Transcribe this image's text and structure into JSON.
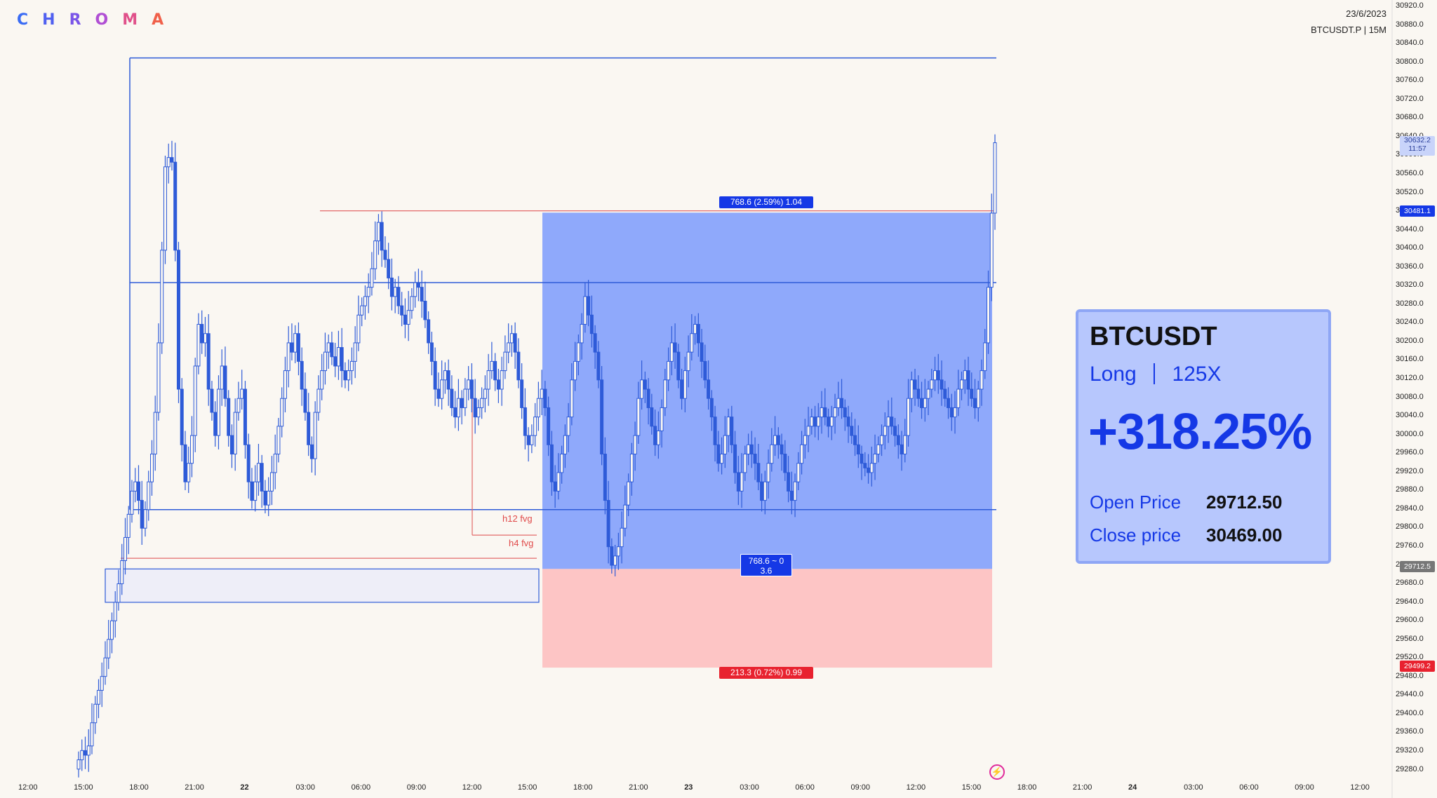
{
  "brand": {
    "letters": [
      "C",
      "H",
      "R",
      "O",
      "M",
      "A"
    ],
    "colors": [
      "#3a6cf4",
      "#5060f0",
      "#7a55e8",
      "#b04fd4",
      "#e0508a",
      "#f0604a"
    ]
  },
  "header": {
    "date": "23/6/2023",
    "symbol_line": "BTCUSDT.P | 15M"
  },
  "price_axis": {
    "ticks": [
      "30920.0",
      "30880.0",
      "30840.0",
      "30800.0",
      "30760.0",
      "30720.0",
      "30680.0",
      "30640.0",
      "30600.0",
      "30560.0",
      "30520.0",
      "30480.0",
      "30440.0",
      "30400.0",
      "30360.0",
      "30320.0",
      "30280.0",
      "30240.0",
      "30200.0",
      "30160.0",
      "30120.0",
      "30080.0",
      "30040.0",
      "30000.0",
      "29960.0",
      "29920.0",
      "29880.0",
      "29840.0",
      "29800.0",
      "29760.0",
      "29720.0",
      "29680.0",
      "29640.0",
      "29600.0",
      "29560.0",
      "29520.0",
      "29480.0",
      "29440.0",
      "29400.0",
      "29360.0",
      "29320.0",
      "29280.0"
    ],
    "current_price": "30632.2",
    "countdown": "11:57",
    "tp_price": "30481.1",
    "entry_price": "29712.5",
    "sl_price": "29499.2"
  },
  "time_axis": {
    "ticks": [
      "12:00",
      "15:00",
      "18:00",
      "21:00",
      "22",
      "03:00",
      "06:00",
      "09:00",
      "12:00",
      "15:00",
      "18:00",
      "21:00",
      "23",
      "03:00",
      "06:00",
      "09:00",
      "12:00",
      "15:00",
      "18:00",
      "21:00",
      "24",
      "03:00",
      "06:00",
      "09:00",
      "12:00"
    ],
    "bold": [
      "22",
      "23",
      "24"
    ]
  },
  "position_tool": {
    "target_label": "768.6 (2.59%) 1.04",
    "center_label_line1": "768.6 ~ 0",
    "center_label_line2": "3.6",
    "stop_label": "213.3 (0.72%) 0.99",
    "fvg_labels": [
      "h12 fvg",
      "h4 fvg"
    ]
  },
  "card": {
    "symbol": "BTCUSDT",
    "side": "Long",
    "leverage": "125X",
    "pnl": "+318.25%",
    "open_label": "Open Price",
    "open_value": "29712.50",
    "close_label": "Close price",
    "close_value": "30469.00"
  },
  "colors": {
    "candle": "#2e5bd8",
    "profit_zone": "#8fa9fb",
    "loss_zone": "#fdc5c5",
    "accent_blue": "#1538e6",
    "accent_red": "#e8222f"
  },
  "chart_data": {
    "type": "candlestick",
    "ylim": [
      29260,
      30940
    ],
    "candles_close": [
      29300,
      29320,
      29310,
      29330,
      29380,
      29420,
      29450,
      29480,
      29520,
      29560,
      29600,
      29640,
      29680,
      29730,
      29780,
      29830,
      29880,
      29900,
      29860,
      29800,
      29840,
      29900,
      29960,
      30050,
      30200,
      30400,
      30580,
      30600,
      30590,
      30400,
      30100,
      29980,
      29900,
      29940,
      30000,
      30150,
      30240,
      30200,
      30220,
      30100,
      30050,
      30000,
      30100,
      30150,
      30080,
      30000,
      29960,
      30050,
      30080,
      30100,
      29980,
      29900,
      29860,
      29900,
      29940,
      29880,
      29850,
      29880,
      29920,
      29960,
      30020,
      30080,
      30140,
      30200,
      30180,
      30220,
      30160,
      30100,
      30050,
      29980,
      29950,
      30050,
      30100,
      30140,
      30180,
      30200,
      30170,
      30150,
      30190,
      30140,
      30120,
      30140,
      30160,
      30200,
      30260,
      30280,
      30300,
      30320,
      30360,
      30420,
      30460,
      30400,
      30380,
      30340,
      30300,
      30320,
      30280,
      30260,
      30240,
      30270,
      30300,
      30330,
      30320,
      30290,
      30250,
      30200,
      30160,
      30100,
      30080,
      30120,
      30140,
      30100,
      30060,
      30040,
      30080,
      30060,
      30100,
      30120,
      30080,
      30040,
      30060,
      30080,
      30100,
      30140,
      30160,
      30120,
      30100,
      30140,
      30180,
      30200,
      30220,
      30180,
      30120,
      30060,
      30000,
      29980,
      30000,
      30040,
      30080,
      30100,
      30060,
      29980,
      29900,
      29880,
      29920,
      29960,
      30000,
      30040,
      30120,
      30160,
      30200,
      30240,
      30300,
      30260,
      30220,
      30180,
      30120,
      29960,
      29860,
      29760,
      29720,
      29740,
      29760,
      29800,
      29850,
      29900,
      29960,
      30000,
      30080,
      30120,
      30100,
      30060,
      30020,
      29980,
      30010,
      30060,
      30120,
      30160,
      30200,
      30180,
      30120,
      30080,
      30140,
      30180,
      30220,
      30240,
      30200,
      30160,
      30120,
      30080,
      30040,
      29980,
      29940,
      29960,
      30000,
      30040,
      29980,
      29920,
      29880,
      29920,
      29960,
      29980,
      29960,
      29940,
      29900,
      29860,
      29900,
      29940,
      29980,
      30000,
      29980,
      29960,
      29920,
      29880,
      29860,
      29900,
      29940,
      29980,
      30000,
      30020,
      30040,
      30020,
      30040,
      30060,
      30040,
      30020,
      30040,
      30060,
      30080,
      30060,
      30040,
      30020,
      30000,
      29980,
      29960,
      29940,
      29930,
      29920,
      29940,
      29960,
      29980,
      30000,
      30020,
      30040,
      30020,
      30000,
      29980,
      29960,
      30000,
      30080,
      30120,
      30100,
      30080,
      30060,
      30080,
      30100,
      30120,
      30140,
      30120,
      30100,
      30080,
      30060,
      30040,
      30060,
      30100,
      30120,
      30140,
      30100,
      30080,
      30060,
      30100,
      30140,
      30200,
      30320,
      30480,
      30632
    ]
  }
}
